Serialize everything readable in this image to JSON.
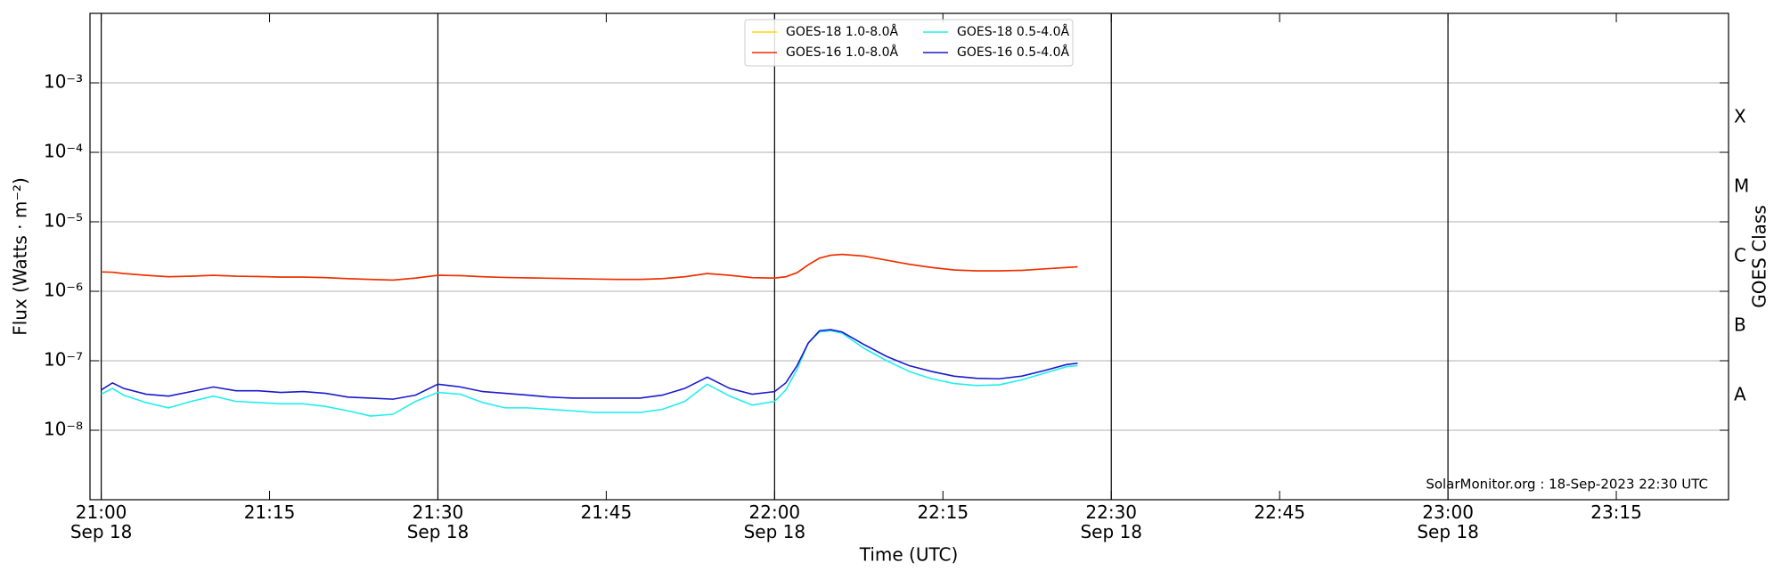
{
  "chart_data": {
    "type": "line",
    "xlabel": "Time (UTC)",
    "ylabel": "Flux (Watts · m⁻²)",
    "y2label": "GOES Class",
    "annotation": "SolarMonitor.org : 18-Sep-2023 22:30 UTC",
    "yscale": "log",
    "grid": true,
    "legend": "upper center",
    "x": [
      "21:00",
      "21:01",
      "21:02",
      "21:04",
      "21:06",
      "21:08",
      "21:10",
      "21:12",
      "21:14",
      "21:16",
      "21:18",
      "21:20",
      "21:22",
      "21:24",
      "21:26",
      "21:28",
      "21:30",
      "21:32",
      "21:34",
      "21:36",
      "21:38",
      "21:40",
      "21:42",
      "21:44",
      "21:46",
      "21:48",
      "21:50",
      "21:52",
      "21:54",
      "21:56",
      "21:58",
      "22:00",
      "22:01",
      "22:02",
      "22:03",
      "22:04",
      "22:05",
      "22:06",
      "22:08",
      "22:10",
      "22:12",
      "22:14",
      "22:16",
      "22:18",
      "22:20",
      "22:22",
      "22:24",
      "22:26",
      "22:27"
    ],
    "series": [
      {
        "name": "GOES-18 1.0-8.0Å",
        "color": "#ffd700",
        "values": [
          1.9e-06,
          1.88e-06,
          1.8e-06,
          1.7e-06,
          1.62e-06,
          1.65e-06,
          1.7e-06,
          1.65e-06,
          1.63e-06,
          1.6e-06,
          1.6e-06,
          1.57e-06,
          1.52e-06,
          1.48e-06,
          1.45e-06,
          1.55e-06,
          1.7e-06,
          1.68e-06,
          1.62e-06,
          1.58e-06,
          1.56e-06,
          1.54e-06,
          1.52e-06,
          1.5e-06,
          1.48e-06,
          1.48e-06,
          1.52e-06,
          1.62e-06,
          1.8e-06,
          1.7e-06,
          1.57e-06,
          1.55e-06,
          1.62e-06,
          1.85e-06,
          2.4e-06,
          3e-06,
          3.3e-06,
          3.4e-06,
          3.2e-06,
          2.8e-06,
          2.45e-06,
          2.2e-06,
          2.03e-06,
          1.97e-06,
          1.97e-06,
          2e-06,
          2.1e-06,
          2.2e-06,
          2.25e-06
        ]
      },
      {
        "name": "GOES-16 1.0-8.0Å",
        "color": "#ee2a0a",
        "values": [
          1.9e-06,
          1.88e-06,
          1.8e-06,
          1.7e-06,
          1.62e-06,
          1.65e-06,
          1.7e-06,
          1.65e-06,
          1.63e-06,
          1.6e-06,
          1.6e-06,
          1.57e-06,
          1.52e-06,
          1.48e-06,
          1.45e-06,
          1.55e-06,
          1.7e-06,
          1.68e-06,
          1.62e-06,
          1.58e-06,
          1.56e-06,
          1.54e-06,
          1.52e-06,
          1.5e-06,
          1.48e-06,
          1.48e-06,
          1.52e-06,
          1.62e-06,
          1.8e-06,
          1.7e-06,
          1.57e-06,
          1.55e-06,
          1.62e-06,
          1.85e-06,
          2.4e-06,
          3e-06,
          3.3e-06,
          3.4e-06,
          3.2e-06,
          2.8e-06,
          2.45e-06,
          2.2e-06,
          2.03e-06,
          1.97e-06,
          1.97e-06,
          2e-06,
          2.1e-06,
          2.2e-06,
          2.25e-06
        ]
      },
      {
        "name": "GOES-18 0.5-4.0Å",
        "color": "#22eeee",
        "values": [
          3.3e-08,
          4e-08,
          3.2e-08,
          2.5e-08,
          2.1e-08,
          2.6e-08,
          3.1e-08,
          2.6e-08,
          2.5e-08,
          2.4e-08,
          2.4e-08,
          2.2e-08,
          1.9e-08,
          1.6e-08,
          1.7e-08,
          2.6e-08,
          3.5e-08,
          3.3e-08,
          2.5e-08,
          2.1e-08,
          2.1e-08,
          2e-08,
          1.9e-08,
          1.8e-08,
          1.8e-08,
          1.8e-08,
          2e-08,
          2.6e-08,
          4.6e-08,
          3.1e-08,
          2.3e-08,
          2.6e-08,
          3.8e-08,
          7.5e-08,
          1.8e-07,
          2.6e-07,
          2.7e-07,
          2.5e-07,
          1.5e-07,
          1e-07,
          7e-08,
          5.5e-08,
          4.7e-08,
          4.4e-08,
          4.5e-08,
          5.3e-08,
          6.6e-08,
          8.2e-08,
          8.5e-08
        ]
      },
      {
        "name": "GOES-16 0.5-4.0Å",
        "color": "#1a1acc",
        "values": [
          3.8e-08,
          4.8e-08,
          4e-08,
          3.3e-08,
          3.1e-08,
          3.6e-08,
          4.2e-08,
          3.7e-08,
          3.7e-08,
          3.5e-08,
          3.6e-08,
          3.4e-08,
          3e-08,
          2.9e-08,
          2.8e-08,
          3.2e-08,
          4.6e-08,
          4.2e-08,
          3.6e-08,
          3.4e-08,
          3.2e-08,
          3e-08,
          2.9e-08,
          2.9e-08,
          2.9e-08,
          2.9e-08,
          3.2e-08,
          4e-08,
          5.8e-08,
          4e-08,
          3.3e-08,
          3.6e-08,
          4.8e-08,
          8.5e-08,
          1.8e-07,
          2.7e-07,
          2.8e-07,
          2.6e-07,
          1.7e-07,
          1.15e-07,
          8.5e-08,
          7e-08,
          6e-08,
          5.6e-08,
          5.5e-08,
          6e-08,
          7.2e-08,
          8.8e-08,
          9.2e-08
        ]
      }
    ],
    "xlim": [
      "20:59",
      "23:25"
    ],
    "xticks": [
      {
        "value": "21:00",
        "label": "21:00\nSep 18"
      },
      "21:15",
      {
        "value": "21:30",
        "label": "21:30\nSep 18"
      },
      "21:45",
      {
        "value": "22:00",
        "label": "22:00\nSep 18"
      },
      "22:15",
      {
        "value": "22:30",
        "label": "22:30\nSep 18"
      },
      "22:45",
      {
        "value": "23:00",
        "label": "23:00\nSep 18"
      },
      "23:15"
    ],
    "ylim": [
      1e-09,
      0.01
    ],
    "yticks": [
      {
        "value": 1e-08,
        "label": "10⁻⁸"
      },
      {
        "value": 1e-07,
        "label": "10⁻⁷"
      },
      {
        "value": 1e-06,
        "label": "10⁻⁶"
      },
      {
        "value": 1e-05,
        "label": "10⁻⁵"
      },
      {
        "value": 0.0001,
        "label": "10⁻⁴"
      },
      {
        "value": 0.001,
        "label": "10⁻³"
      }
    ],
    "y2lim": [
      1e-09,
      0.01
    ],
    "y2ticks": [
      {
        "value": 3.16e-08,
        "label": "A"
      },
      {
        "value": 3.16e-07,
        "label": "B"
      },
      {
        "value": 3.16e-06,
        "label": "C"
      },
      {
        "value": 3.16e-05,
        "label": "M"
      },
      {
        "value": 0.000316,
        "label": "X"
      }
    ]
  }
}
